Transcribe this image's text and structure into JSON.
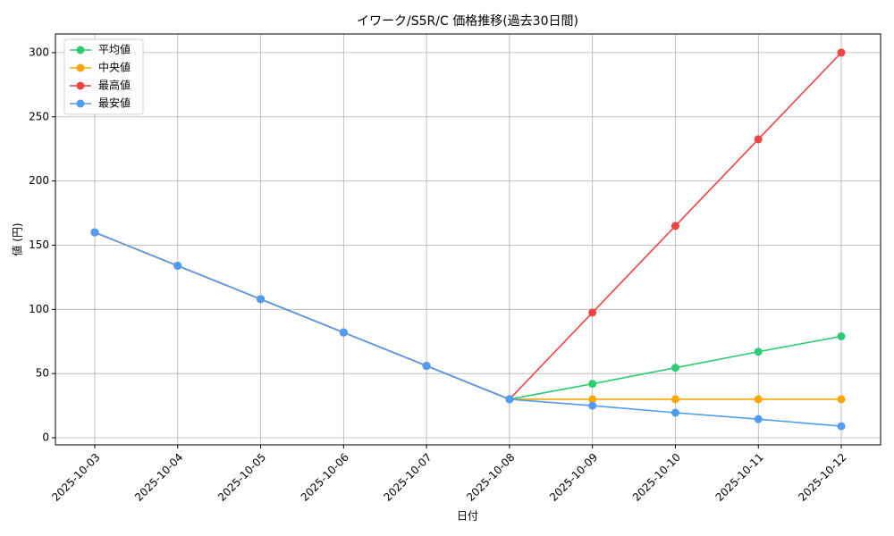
{
  "chart_data": {
    "type": "line",
    "title": "イワーク/S5R/C 価格推移(過去30日間)",
    "x_label": "日付",
    "y_label": "値 (円)",
    "categories": [
      "2025-10-03",
      "2025-10-04",
      "2025-10-05",
      "2025-10-06",
      "2025-10-07",
      "2025-10-08",
      "2025-10-09",
      "2025-10-10",
      "2025-10-11",
      "2025-10-12"
    ],
    "series": [
      {
        "name": "平均値",
        "color": "#2ecc71",
        "values": [
          160,
          134,
          108,
          82,
          56,
          30,
          42,
          54.5,
          67,
          79
        ]
      },
      {
        "name": "中央値",
        "color": "#ffa500",
        "values": [
          160,
          134,
          108,
          82,
          56,
          30,
          30,
          30,
          30,
          30
        ]
      },
      {
        "name": "最高値",
        "color": "#ef4444",
        "values": [
          160,
          134,
          108,
          82,
          56,
          30,
          97.5,
          165,
          232.5,
          300
        ]
      },
      {
        "name": "最安値",
        "color": "#4f9cf0",
        "values": [
          160,
          134,
          108,
          82,
          56,
          30,
          25,
          19.5,
          14.5,
          9
        ]
      }
    ],
    "ylim": [
      -5.55,
      314.55
    ],
    "yticks": [
      0,
      50,
      100,
      150,
      200,
      250,
      300
    ],
    "grid": true,
    "legend": "upper-left"
  }
}
